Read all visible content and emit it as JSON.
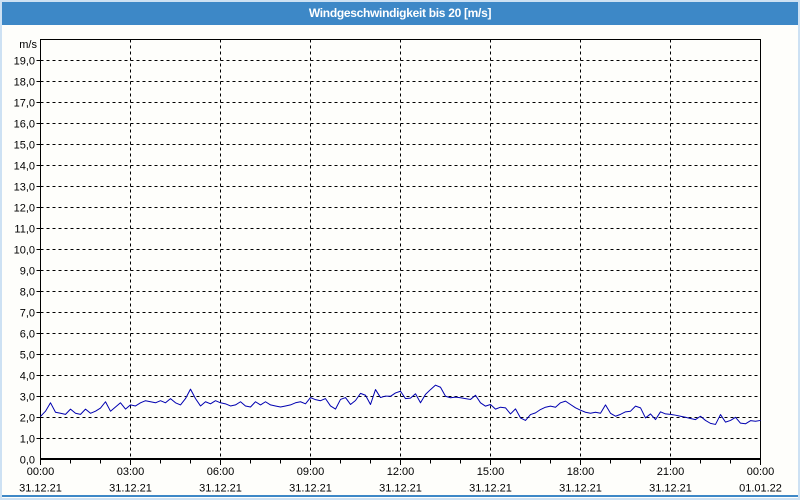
{
  "header": {
    "title": "Windgeschwindigkeit bis 20 [m/s]"
  },
  "colors": {
    "header_bg": "#3d88c7",
    "header_text": "#ffffff",
    "page_border": "#cde1f3",
    "plot_line": "#0000b0",
    "axis": "#000000"
  },
  "chart_data": {
    "type": "line",
    "title": "Windgeschwindigkeit bis 20 [m/s]",
    "ylabel": "m/s",
    "ylim": [
      0,
      20
    ],
    "ytick_step": 1,
    "ytick_labels": [
      "0,0",
      "1,0",
      "2,0",
      "3,0",
      "4,0",
      "5,0",
      "6,0",
      "7,0",
      "8,0",
      "9,0",
      "10,0",
      "11,0",
      "12,0",
      "13,0",
      "14,0",
      "15,0",
      "16,0",
      "17,0",
      "18,0",
      "19,0"
    ],
    "xlim_hours": [
      0,
      24
    ],
    "x_step_minutes": 10,
    "grid": "dashed",
    "xticks": [
      {
        "time": "00:00",
        "date": "31.12.21",
        "hour": 0
      },
      {
        "time": "03:00",
        "date": "31.12.21",
        "hour": 3
      },
      {
        "time": "06:00",
        "date": "31.12.21",
        "hour": 6
      },
      {
        "time": "09:00",
        "date": "31.12.21",
        "hour": 9
      },
      {
        "time": "12:00",
        "date": "31.12.21",
        "hour": 12
      },
      {
        "time": "15:00",
        "date": "31.12.21",
        "hour": 15
      },
      {
        "time": "18:00",
        "date": "31.12.21",
        "hour": 18
      },
      {
        "time": "21:00",
        "date": "31.12.21",
        "hour": 21
      },
      {
        "time": "00:00",
        "date": "01.01.22",
        "hour": 24
      }
    ],
    "values": [
      2.05,
      2.3,
      2.7,
      2.25,
      2.2,
      2.15,
      2.4,
      2.2,
      2.15,
      2.4,
      2.2,
      2.3,
      2.45,
      2.75,
      2.3,
      2.5,
      2.7,
      2.4,
      2.6,
      2.55,
      2.7,
      2.8,
      2.75,
      2.7,
      2.8,
      2.7,
      2.9,
      2.7,
      2.6,
      2.9,
      3.35,
      2.9,
      2.55,
      2.75,
      2.65,
      2.8,
      2.7,
      2.65,
      2.55,
      2.6,
      2.75,
      2.55,
      2.5,
      2.75,
      2.6,
      2.75,
      2.6,
      2.55,
      2.5,
      2.55,
      2.6,
      2.7,
      2.75,
      2.65,
      2.95,
      2.85,
      2.8,
      2.9,
      2.55,
      2.4,
      2.86,
      2.95,
      2.62,
      2.81,
      3.15,
      3.06,
      2.62,
      3.33,
      2.95,
      3.02,
      3.01,
      3.17,
      3.25,
      2.9,
      2.92,
      3.13,
      2.7,
      3.1,
      3.33,
      3.54,
      3.44,
      3.01,
      2.94,
      2.97,
      2.94,
      2.9,
      2.86,
      3.06,
      2.7,
      2.54,
      2.62,
      2.4,
      2.49,
      2.46,
      2.17,
      2.41,
      1.98,
      1.86,
      2.14,
      2.22,
      2.38,
      2.49,
      2.54,
      2.49,
      2.7,
      2.78,
      2.62,
      2.46,
      2.35,
      2.25,
      2.2,
      2.25,
      2.2,
      2.6,
      2.2,
      2.06,
      2.15,
      2.27,
      2.3,
      2.54,
      2.46,
      1.98,
      2.17,
      1.9,
      2.27,
      2.17,
      2.15,
      2.11,
      2.06,
      2.01,
      1.95,
      1.9,
      2.06,
      1.86,
      1.72,
      1.67,
      2.14,
      1.78,
      1.86,
      2.01,
      1.73,
      1.7,
      1.85,
      1.82,
      1.86
    ]
  }
}
